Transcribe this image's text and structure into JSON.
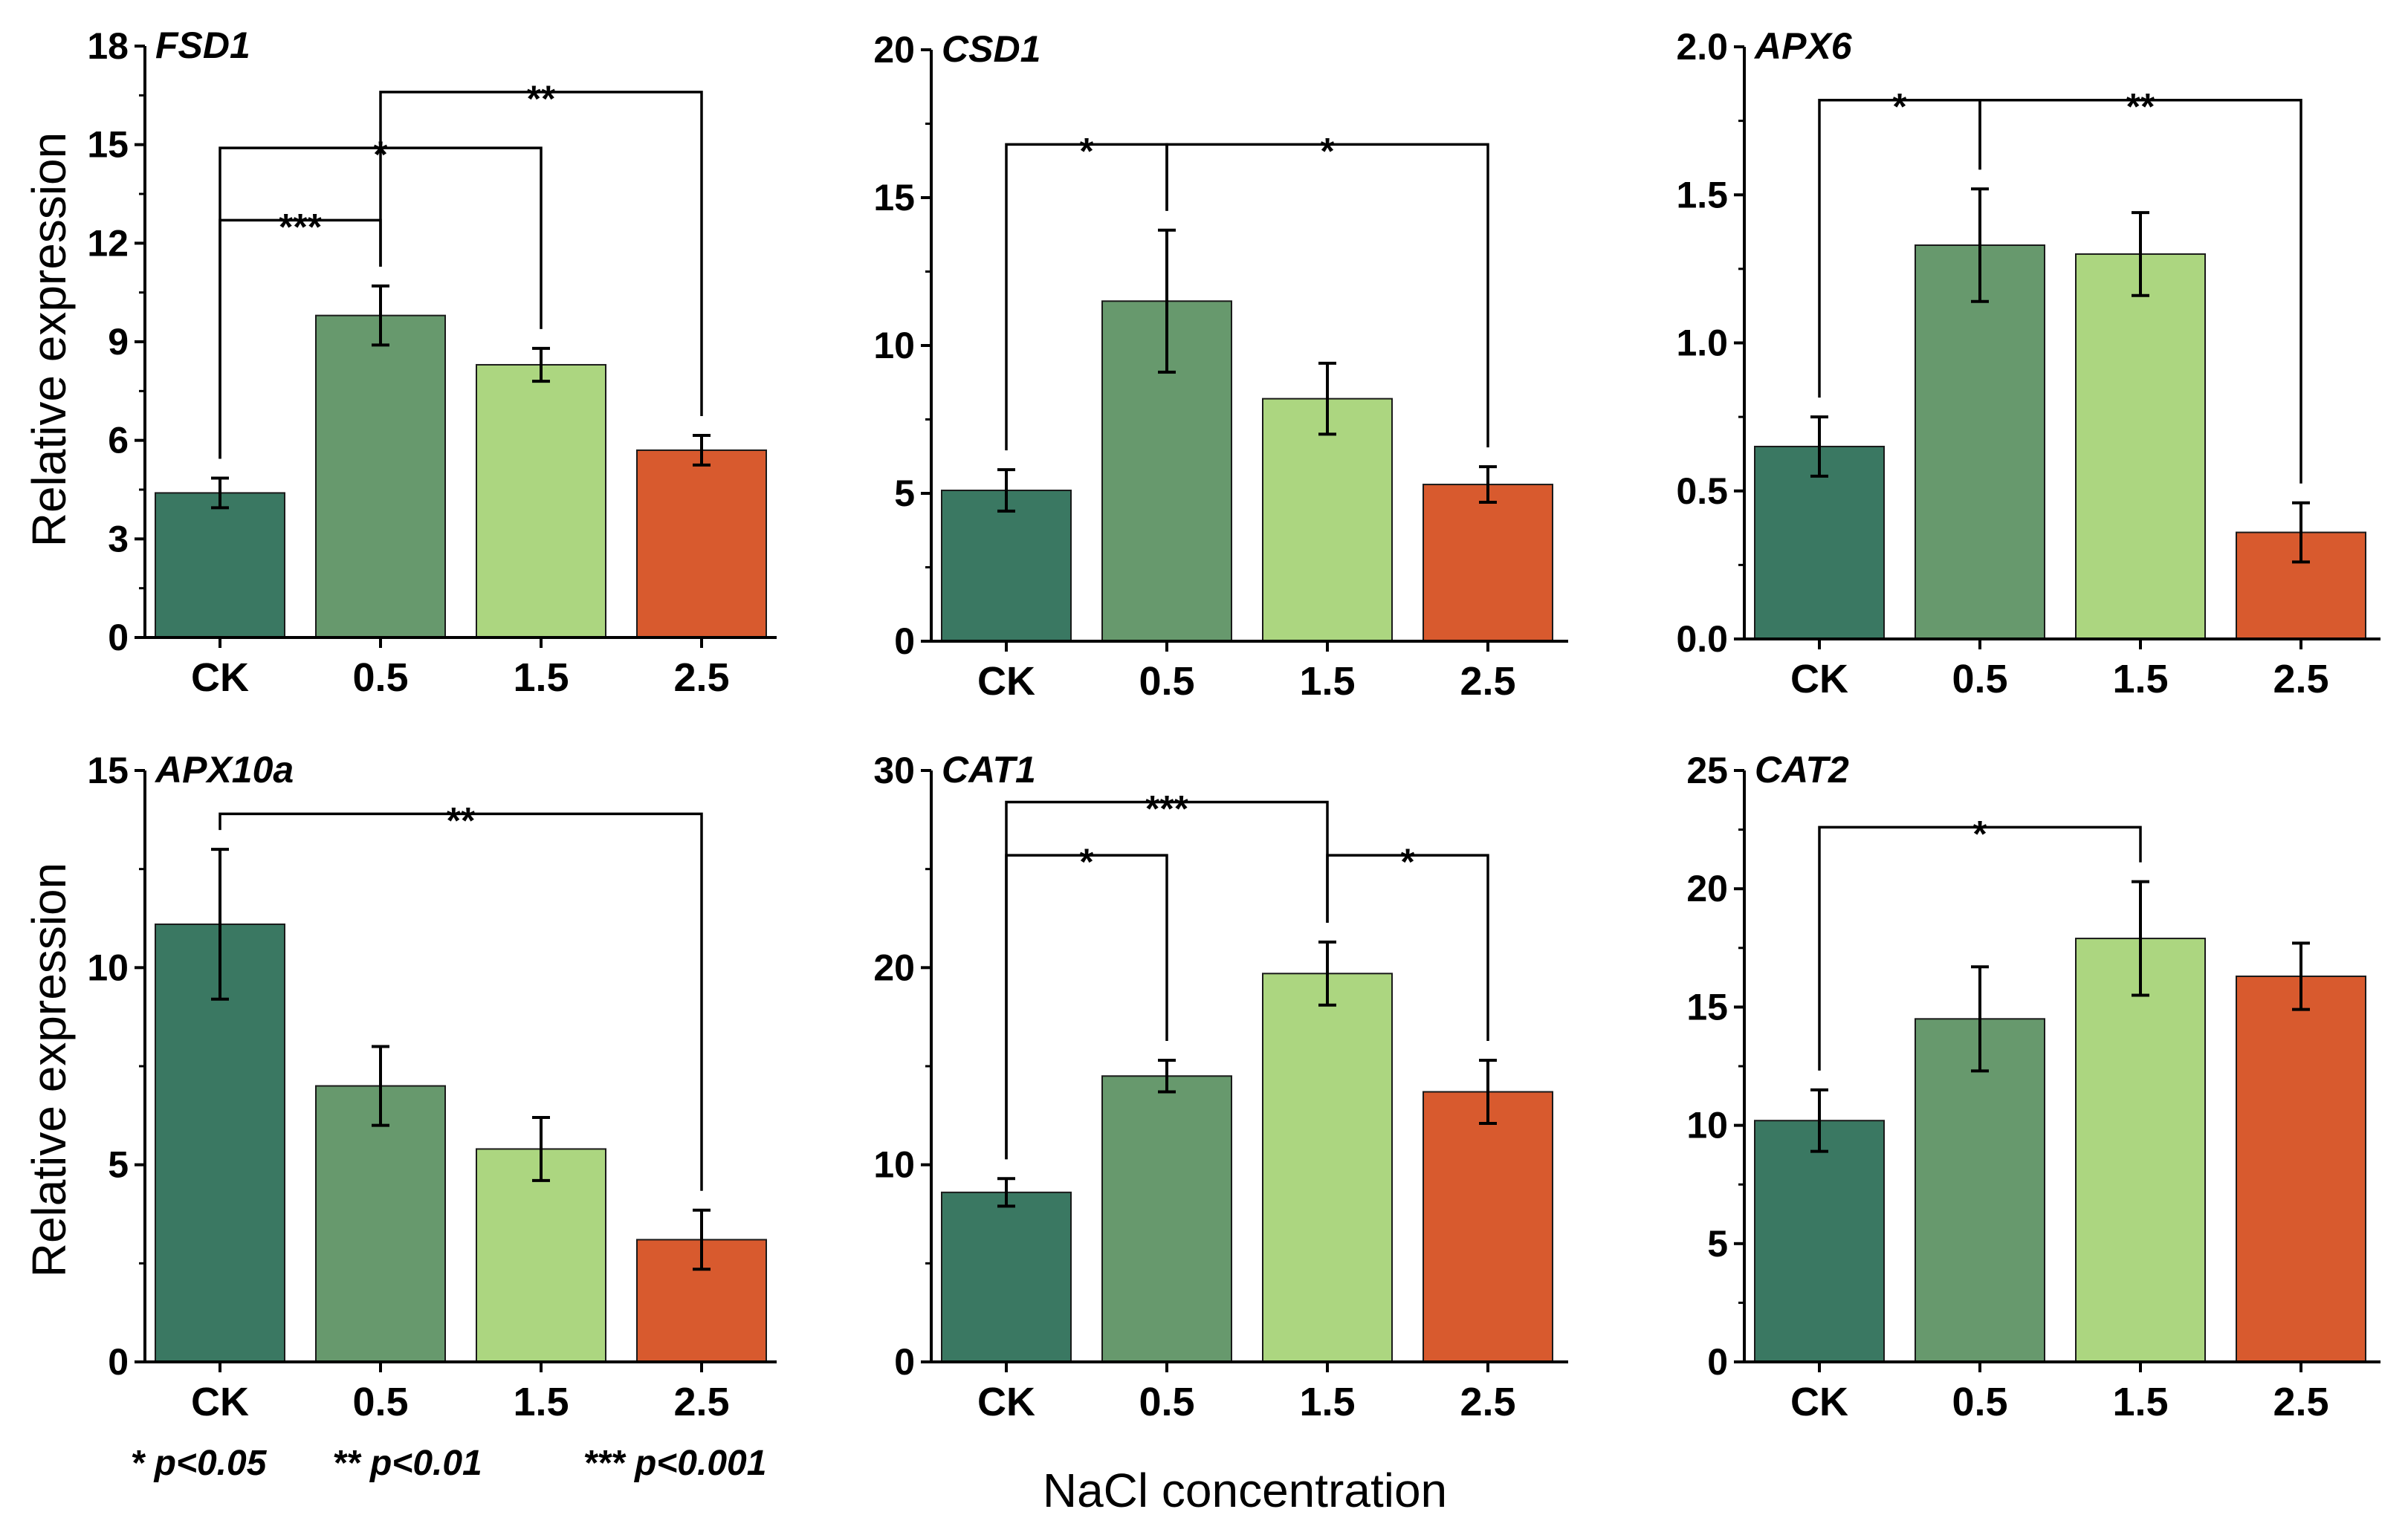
{
  "figure": {
    "xlabel": "NaCl concentration",
    "ylabel": "Relative expression",
    "legend_notes": [
      "* p<0.05",
      "** p<0.01",
      "*** p<0.001"
    ],
    "colors": [
      "#3a7862",
      "#67996d",
      "#acd680",
      "#d85a2e"
    ]
  },
  "chart_data": [
    {
      "type": "bar",
      "title": "FSD1",
      "categories": [
        "CK",
        "0.5",
        "1.5",
        "2.5"
      ],
      "values": [
        4.4,
        9.8,
        8.3,
        5.7
      ],
      "errors": [
        0.45,
        0.9,
        0.5,
        0.45
      ],
      "ylim": [
        0,
        18
      ],
      "yticks": [
        0,
        3,
        6,
        9,
        12,
        15,
        18
      ],
      "ytick_labels": [
        "0",
        "3",
        "6",
        "9",
        "12",
        "15",
        "18"
      ],
      "significance": [
        {
          "from": 0,
          "to": 1,
          "label": "***",
          "y": 12.7,
          "drop_from": 12.7,
          "drop_to": 12.7
        },
        {
          "from": 0,
          "to": 2,
          "label": "*",
          "y": 14.9,
          "drop_from": 14.9,
          "drop_to": 14.9
        },
        {
          "from": 1,
          "to": 3,
          "label": "**",
          "y": 16.6,
          "drop_from": 15.3,
          "drop_to": 16.6
        }
      ]
    },
    {
      "type": "bar",
      "title": "CSD1",
      "categories": [
        "CK",
        "0.5",
        "1.5",
        "2.5"
      ],
      "values": [
        5.1,
        11.5,
        8.2,
        5.3
      ],
      "errors": [
        0.7,
        2.4,
        1.2,
        0.6
      ],
      "ylim": [
        0,
        20
      ],
      "yticks": [
        0,
        5,
        10,
        15,
        20
      ],
      "ytick_labels": [
        "0",
        "5",
        "10",
        "15",
        "20"
      ],
      "significance": [
        {
          "from": 0,
          "to": 1,
          "label": "*",
          "y": 16.8,
          "drop_from": 16.8,
          "drop_to": 16.8
        },
        {
          "from": 1,
          "to": 3,
          "label": "*",
          "y": 16.8,
          "drop_from": 15.8,
          "drop_to": 16.8
        }
      ]
    },
    {
      "type": "bar",
      "title": "APX6",
      "categories": [
        "CK",
        "0.5",
        "1.5",
        "2.5"
      ],
      "values": [
        0.65,
        1.33,
        1.3,
        0.36
      ],
      "errors": [
        0.1,
        0.19,
        0.14,
        0.1
      ],
      "ylim": [
        0,
        2.0
      ],
      "yticks": [
        0,
        0.5,
        1.0,
        1.5,
        2.0
      ],
      "ytick_labels": [
        "0.0",
        "0.5",
        "1.0",
        "1.5",
        "2.0"
      ],
      "significance": [
        {
          "from": 0,
          "to": 1,
          "label": "*",
          "y": 1.82,
          "drop_from": 1.82,
          "drop_to": 1.82
        },
        {
          "from": 1,
          "to": 3,
          "label": "**",
          "y": 1.82,
          "drop_from": 1.67,
          "drop_to": 1.82
        }
      ]
    },
    {
      "type": "bar",
      "title": "APX10a",
      "categories": [
        "CK",
        "0.5",
        "1.5",
        "2.5"
      ],
      "values": [
        11.1,
        7.0,
        5.4,
        3.1
      ],
      "errors": [
        1.9,
        1.0,
        0.8,
        0.75
      ],
      "ylim": [
        0,
        15
      ],
      "yticks": [
        0,
        5,
        10,
        15
      ],
      "ytick_labels": [
        "0",
        "5",
        "10",
        "15"
      ],
      "significance": [
        {
          "from": 0,
          "to": 3,
          "label": "**",
          "y": 13.9,
          "drop_from": 13.1,
          "drop_to": 13.9
        }
      ]
    },
    {
      "type": "bar",
      "title": "CAT1",
      "categories": [
        "CK",
        "0.5",
        "1.5",
        "2.5"
      ],
      "values": [
        8.6,
        14.5,
        19.7,
        13.7
      ],
      "errors": [
        0.7,
        0.8,
        1.6,
        1.6
      ],
      "ylim": [
        0,
        30
      ],
      "yticks": [
        0,
        10,
        20,
        30
      ],
      "ytick_labels": [
        "0",
        "10",
        "20",
        "30"
      ],
      "significance": [
        {
          "from": 0,
          "to": 1,
          "label": "*",
          "y": 25.7,
          "drop_from": 25.7,
          "drop_to": 25.7
        },
        {
          "from": 0,
          "to": 2,
          "label": "***",
          "y": 28.4,
          "drop_from": 28.4,
          "drop_to": 28.4
        },
        {
          "from": 2,
          "to": 3,
          "label": "*",
          "y": 25.7,
          "drop_from": 25.7,
          "drop_to": 25.7
        }
      ]
    },
    {
      "type": "bar",
      "title": "CAT2",
      "categories": [
        "CK",
        "0.5",
        "1.5",
        "2.5"
      ],
      "values": [
        10.2,
        14.5,
        17.9,
        16.3
      ],
      "errors": [
        1.3,
        2.2,
        2.4,
        1.4
      ],
      "ylim": [
        0,
        25
      ],
      "yticks": [
        0,
        5,
        10,
        15,
        20,
        25
      ],
      "ytick_labels": [
        "0",
        "5",
        "10",
        "15",
        "20",
        "25"
      ],
      "significance": [
        {
          "from": 0,
          "to": 2,
          "label": "*",
          "y": 22.6,
          "drop_from": 22.6,
          "drop_to": 22.6
        }
      ]
    }
  ]
}
